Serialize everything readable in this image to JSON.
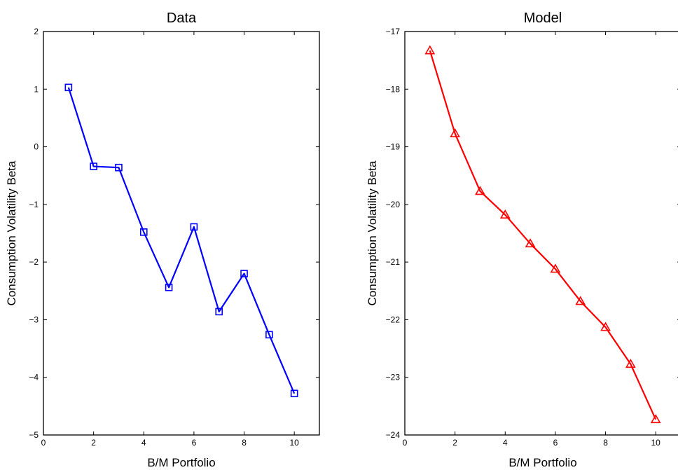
{
  "chart_data": [
    {
      "type": "line",
      "title": "Data",
      "xlabel": "B/M Portfolio",
      "ylabel": "Consumption Volatility Beta",
      "xlim": [
        0,
        11
      ],
      "ylim": [
        -5,
        2
      ],
      "xticks": [
        0,
        2,
        4,
        6,
        8,
        10
      ],
      "yticks": [
        -5,
        -4,
        -3,
        -2,
        -1,
        0,
        1,
        2
      ],
      "grid": false,
      "series": [
        {
          "color": "#0000ff",
          "marker": "square",
          "x": [
            1,
            2,
            3,
            4,
            5,
            6,
            7,
            8,
            9,
            10
          ],
          "y": [
            1.03,
            -0.34,
            -0.36,
            -1.48,
            -2.44,
            -1.39,
            -2.86,
            -2.2,
            -3.26,
            -4.28
          ]
        }
      ]
    },
    {
      "type": "line",
      "title": "Model",
      "xlabel": "B/M Portfolio",
      "ylabel": "Consumption Volatility Beta",
      "xlim": [
        0,
        11
      ],
      "ylim": [
        -24,
        -17
      ],
      "xticks": [
        0,
        2,
        4,
        6,
        8,
        10
      ],
      "yticks": [
        -24,
        -23,
        -22,
        -21,
        -20,
        -19,
        -18,
        -17
      ],
      "grid": false,
      "series": [
        {
          "color": "#ff0000",
          "marker": "triangle",
          "x": [
            1,
            2,
            3,
            4,
            5,
            6,
            7,
            8,
            9,
            10
          ],
          "y": [
            -17.33,
            -18.77,
            -19.77,
            -20.18,
            -20.68,
            -21.12,
            -21.68,
            -22.13,
            -22.77,
            -23.73
          ]
        }
      ]
    }
  ]
}
